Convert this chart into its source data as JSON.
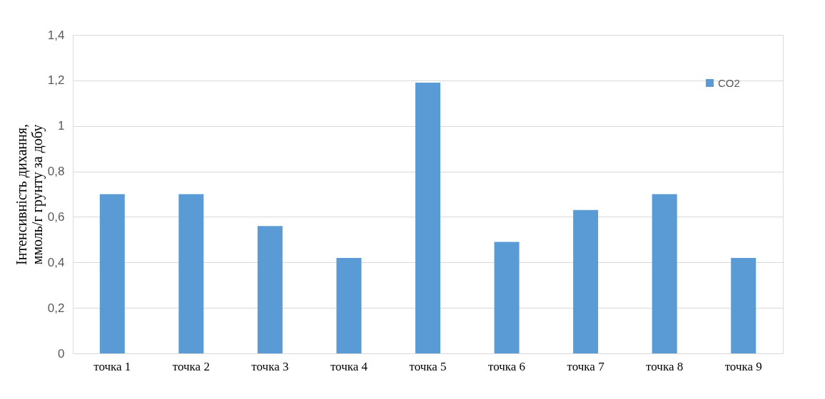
{
  "chart_data": {
    "type": "bar",
    "ylabel": "Інтенсивність дихання, ммоль/г грунту за добу",
    "categories": [
      "точка 1",
      "точка 2",
      "точка 3",
      "точка 4",
      "точка 5",
      "точка 6",
      "точка 7",
      "точка 8",
      "точка 9"
    ],
    "series": [
      {
        "name": "CO2",
        "color": "#5b9bd5",
        "values": [
          0.7,
          0.7,
          0.56,
          0.42,
          1.19,
          0.49,
          0.63,
          0.7,
          0.42
        ]
      }
    ],
    "ylim": [
      0,
      1.4
    ],
    "yticks": [
      0,
      {
        "value": 0.2,
        "label": "0,2"
      },
      {
        "value": 0.4,
        "label": "0,4"
      },
      {
        "value": 0.6,
        "label": "0,6"
      },
      {
        "value": 0.8,
        "label": "0,8"
      },
      1,
      {
        "value": 1.2,
        "label": "1,2"
      },
      {
        "value": 1.4,
        "label": "1,4"
      }
    ],
    "grid": "y",
    "legend": "top right"
  }
}
